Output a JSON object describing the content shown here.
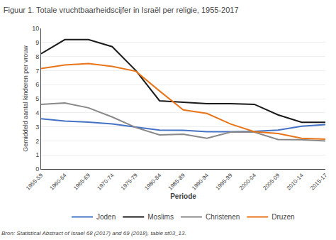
{
  "chart_data": {
    "type": "line",
    "title": "Figuur 1. Totale vruchtbaarheidscijfer in Israël per religie, 1955-2017",
    "x_label": "Periode",
    "y_label": "Gemiddeld aantal kinderen per vrouw",
    "annotations": [
      "Bron: Statistical Abstract of Israel 68 (2017) and 69 (2018), table st03_13."
    ],
    "categories": [
      "1955-59",
      "1960-64",
      "1965-69",
      "1970-74",
      "1975-79",
      "1980-84",
      "1985-89",
      "1990-94",
      "1995-99",
      "2000-04",
      "2005-09",
      "2010-14",
      "2015-17"
    ],
    "series": [
      {
        "name": "Joden",
        "color": "#4472c4",
        "values": [
          3.57,
          3.41,
          3.33,
          3.21,
          2.98,
          2.77,
          2.75,
          2.65,
          2.65,
          2.68,
          2.77,
          3.04,
          3.16
        ]
      },
      {
        "name": "Moslims",
        "color": "#1a1a1a",
        "values": [
          8.2,
          9.2,
          9.2,
          8.7,
          7.0,
          4.85,
          4.75,
          4.65,
          4.65,
          4.6,
          3.85,
          3.32,
          3.32
        ]
      },
      {
        "name": "Christenen",
        "color": "#888888",
        "values": [
          4.6,
          4.7,
          4.35,
          3.7,
          2.95,
          2.43,
          2.48,
          2.18,
          2.62,
          2.62,
          2.1,
          2.08,
          2.0
        ]
      },
      {
        "name": "Druzen",
        "color": "#e8751a",
        "values": [
          7.15,
          7.4,
          7.5,
          7.3,
          6.95,
          5.55,
          4.2,
          3.95,
          3.2,
          2.65,
          2.52,
          2.18,
          2.12
        ]
      }
    ],
    "ylim": [
      0,
      10
    ],
    "yticks": [
      0,
      1,
      2,
      3,
      4,
      5,
      6,
      7,
      8,
      9,
      10
    ],
    "grid": true,
    "legend": "bottom"
  }
}
